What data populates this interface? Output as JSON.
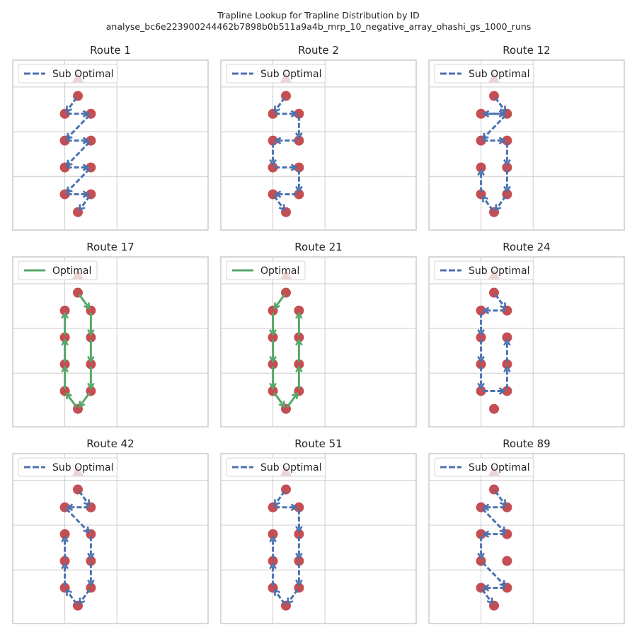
{
  "figure": {
    "title_line1": "Trapline Lookup for Trapline Distribution by ID",
    "title_line2": "analyse_bc6e223900244462b7898b0b511a9a4b_mrp_10_negative_array_ohashi_gs_1000_runs"
  },
  "colors": {
    "sub_optimal": "#4c72b0",
    "optimal": "#55a868",
    "flower": "#c44e52",
    "nest": "#a12a2a",
    "grid": "#cccccc",
    "frame": "#cccccc"
  },
  "chart_data": [
    {
      "type": "line",
      "title": "Route 1",
      "legend": "Sub Optimal",
      "legend_loc": "upper left",
      "style": "dashed",
      "nest": [
        0.5,
        0.5
      ],
      "points": [
        [
          0.5,
          -0.5
        ],
        [
          0,
          -1.5
        ],
        [
          1,
          -1.5
        ],
        [
          0,
          -3
        ],
        [
          1,
          -3
        ],
        [
          0,
          -4.5
        ],
        [
          1,
          -4.5
        ],
        [
          0,
          -6
        ],
        [
          1,
          -6
        ],
        [
          0.5,
          -7
        ]
      ],
      "route": [
        0,
        1,
        2,
        3,
        4,
        5,
        6,
        7,
        8,
        9
      ],
      "xlim": [
        -2,
        5.5
      ],
      "ylim": [
        -8,
        1.5
      ],
      "grid": true
    },
    {
      "type": "line",
      "title": "Route 2",
      "legend": "Sub Optimal",
      "legend_loc": "upper left",
      "style": "dashed",
      "nest": [
        0.5,
        0.5
      ],
      "points": [
        [
          0.5,
          -0.5
        ],
        [
          0,
          -1.5
        ],
        [
          1,
          -1.5
        ],
        [
          0,
          -3
        ],
        [
          1,
          -3
        ],
        [
          0,
          -4.5
        ],
        [
          1,
          -4.5
        ],
        [
          0,
          -6
        ],
        [
          1,
          -6
        ],
        [
          0.5,
          -7
        ]
      ],
      "route": [
        0,
        1,
        2,
        4,
        3,
        5,
        6,
        8,
        7,
        9
      ],
      "xlim": [
        -2,
        5.5
      ],
      "ylim": [
        -8,
        1.5
      ],
      "grid": true
    },
    {
      "type": "line",
      "title": "Route 12",
      "legend": "Sub Optimal",
      "legend_loc": "upper left",
      "style": "dashed",
      "nest": [
        0.5,
        0.5
      ],
      "points": [
        [
          0.5,
          -0.5
        ],
        [
          0,
          -1.5
        ],
        [
          1,
          -1.5
        ],
        [
          0,
          -3
        ],
        [
          1,
          -3
        ],
        [
          0,
          -4.5
        ],
        [
          1,
          -4.5
        ],
        [
          0,
          -6
        ],
        [
          1,
          -6
        ],
        [
          0.5,
          -7
        ]
      ],
      "route": [
        0,
        2,
        1,
        2,
        3,
        4,
        6,
        8,
        9,
        7,
        5
      ],
      "xlim": [
        -2,
        5.5
      ],
      "ylim": [
        -8,
        1.5
      ],
      "grid": true
    },
    {
      "type": "line",
      "title": "Route 17",
      "legend": "Optimal",
      "legend_loc": "upper left",
      "style": "solid",
      "nest": [
        0.5,
        0.5
      ],
      "points": [
        [
          0.5,
          -0.5
        ],
        [
          0,
          -1.5
        ],
        [
          1,
          -1.5
        ],
        [
          0,
          -3
        ],
        [
          1,
          -3
        ],
        [
          0,
          -4.5
        ],
        [
          1,
          -4.5
        ],
        [
          0,
          -6
        ],
        [
          1,
          -6
        ],
        [
          0.5,
          -7
        ]
      ],
      "route": [
        0,
        2,
        4,
        6,
        8,
        9,
        7,
        5,
        3,
        1
      ],
      "xlim": [
        -2,
        5.5
      ],
      "ylim": [
        -8,
        1.5
      ],
      "grid": true
    },
    {
      "type": "line",
      "title": "Route 21",
      "legend": "Optimal",
      "legend_loc": "upper left",
      "style": "solid",
      "nest": [
        0.5,
        0.5
      ],
      "points": [
        [
          0.5,
          -0.5
        ],
        [
          0,
          -1.5
        ],
        [
          1,
          -1.5
        ],
        [
          0,
          -3
        ],
        [
          1,
          -3
        ],
        [
          0,
          -4.5
        ],
        [
          1,
          -4.5
        ],
        [
          0,
          -6
        ],
        [
          1,
          -6
        ],
        [
          0.5,
          -7
        ]
      ],
      "route": [
        0,
        1,
        3,
        5,
        7,
        9,
        8,
        6,
        4,
        2
      ],
      "xlim": [
        -2,
        5.5
      ],
      "ylim": [
        -8,
        1.5
      ],
      "grid": true
    },
    {
      "type": "line",
      "title": "Route 24",
      "legend": "Sub Optimal",
      "legend_loc": "upper left",
      "style": "dashed",
      "nest": [
        0.5,
        0.5
      ],
      "points": [
        [
          0.5,
          -0.5
        ],
        [
          0,
          -1.5
        ],
        [
          1,
          -1.5
        ],
        [
          0,
          -3
        ],
        [
          1,
          -3
        ],
        [
          0,
          -4.5
        ],
        [
          1,
          -4.5
        ],
        [
          0,
          -6
        ],
        [
          1,
          -6
        ],
        [
          0.5,
          -7
        ]
      ],
      "route": [
        0,
        2,
        1,
        3,
        5,
        7,
        8,
        6,
        4
      ],
      "xlim": [
        -2,
        5.5
      ],
      "ylim": [
        -8,
        1.5
      ],
      "grid": true
    },
    {
      "type": "line",
      "title": "Route 42",
      "legend": "Sub Optimal",
      "legend_loc": "upper left",
      "style": "dashed",
      "nest": [
        0.5,
        0.5
      ],
      "points": [
        [
          0.5,
          -0.5
        ],
        [
          0,
          -1.5
        ],
        [
          1,
          -1.5
        ],
        [
          0,
          -3
        ],
        [
          1,
          -3
        ],
        [
          0,
          -4.5
        ],
        [
          1,
          -4.5
        ],
        [
          0,
          -6
        ],
        [
          1,
          -6
        ],
        [
          0.5,
          -7
        ]
      ],
      "route": [
        0,
        2,
        1,
        4,
        6,
        8,
        9,
        7,
        5,
        3
      ],
      "xlim": [
        -2,
        5.5
      ],
      "ylim": [
        -8,
        1.5
      ],
      "grid": true
    },
    {
      "type": "line",
      "title": "Route 51",
      "legend": "Sub Optimal",
      "legend_loc": "upper left",
      "style": "dashed",
      "nest": [
        0.5,
        0.5
      ],
      "points": [
        [
          0.5,
          -0.5
        ],
        [
          0,
          -1.5
        ],
        [
          1,
          -1.5
        ],
        [
          0,
          -3
        ],
        [
          1,
          -3
        ],
        [
          0,
          -4.5
        ],
        [
          1,
          -4.5
        ],
        [
          0,
          -6
        ],
        [
          1,
          -6
        ],
        [
          0.5,
          -7
        ]
      ],
      "route": [
        0,
        1,
        2,
        4,
        6,
        8,
        9,
        7,
        5,
        3
      ],
      "xlim": [
        -2,
        5.5
      ],
      "ylim": [
        -8,
        1.5
      ],
      "grid": true
    },
    {
      "type": "line",
      "title": "Route 89",
      "legend": "Sub Optimal",
      "legend_loc": "upper left",
      "style": "dashed",
      "nest": [
        0.5,
        0.5
      ],
      "points": [
        [
          0.5,
          -0.5
        ],
        [
          0,
          -1.5
        ],
        [
          1,
          -1.5
        ],
        [
          0,
          -3
        ],
        [
          1,
          -3
        ],
        [
          0,
          -4.5
        ],
        [
          1,
          -4.5
        ],
        [
          0,
          -6
        ],
        [
          1,
          -6
        ],
        [
          0.5,
          -7
        ]
      ],
      "route": [
        0,
        2,
        1,
        4,
        3,
        5,
        8,
        7,
        9
      ],
      "xlim": [
        -2,
        5.5
      ],
      "ylim": [
        -8,
        1.5
      ],
      "grid": true
    }
  ]
}
